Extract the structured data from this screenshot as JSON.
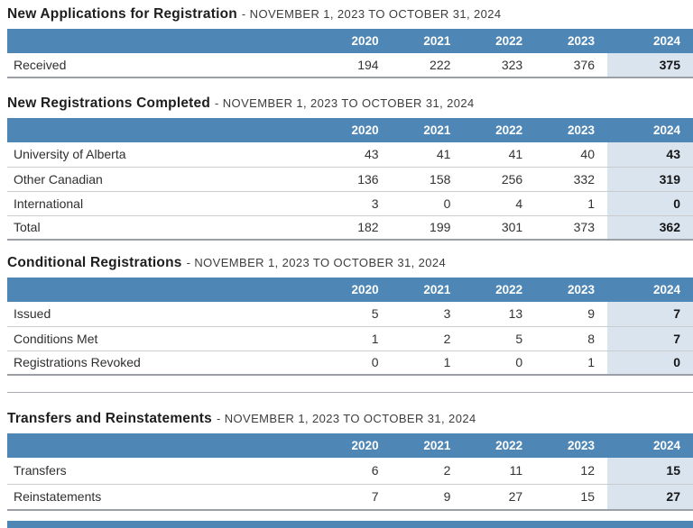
{
  "colors": {
    "header_bg": "#4e86b5",
    "highlight_bg": "#d9e4ee",
    "title_text": "#1e1e1e",
    "header_text": "#ffffff"
  },
  "columns": [
    "2020",
    "2021",
    "2022",
    "2023",
    "2024"
  ],
  "highlight_column": "2024",
  "sections": [
    {
      "title": "New Applications for Registration",
      "subtitle": "- NOVEMBER 1, 2023 TO OCTOBER 31, 2024",
      "rows": [
        {
          "label": "Received",
          "values": [
            "194",
            "222",
            "323",
            "376",
            "375"
          ]
        }
      ]
    },
    {
      "title": "New Registrations Completed",
      "subtitle": "- NOVEMBER 1, 2023 TO OCTOBER 31, 2024",
      "rows": [
        {
          "label": "University of Alberta",
          "values": [
            "43",
            "41",
            "41",
            "40",
            "43"
          ]
        },
        {
          "label": "Other Canadian",
          "values": [
            "136",
            "158",
            "256",
            "332",
            "319"
          ]
        },
        {
          "label": "International",
          "values": [
            "3",
            "0",
            "4",
            "1",
            "0"
          ]
        },
        {
          "label": "Total",
          "values": [
            "182",
            "199",
            "301",
            "373",
            "362"
          ]
        }
      ]
    },
    {
      "title": "Conditional Registrations",
      "subtitle": "- NOVEMBER 1, 2023 TO OCTOBER 31, 2024",
      "rows": [
        {
          "label": "Issued",
          "values": [
            "5",
            "3",
            "13",
            "9",
            "7"
          ]
        },
        {
          "label": "Conditions Met",
          "values": [
            "1",
            "2",
            "5",
            "8",
            "7"
          ]
        },
        {
          "label": "Registrations Revoked",
          "values": [
            "0",
            "1",
            "0",
            "1",
            "0"
          ]
        }
      ]
    },
    {
      "title": "Transfers and Reinstatements",
      "subtitle": "- NOVEMBER 1, 2023 TO OCTOBER 31, 2024",
      "rows": [
        {
          "label": "Transfers",
          "values": [
            "6",
            "2",
            "11",
            "12",
            "15"
          ]
        },
        {
          "label": "Reinstatements",
          "values": [
            "7",
            "9",
            "27",
            "15",
            "27"
          ]
        }
      ]
    }
  ]
}
